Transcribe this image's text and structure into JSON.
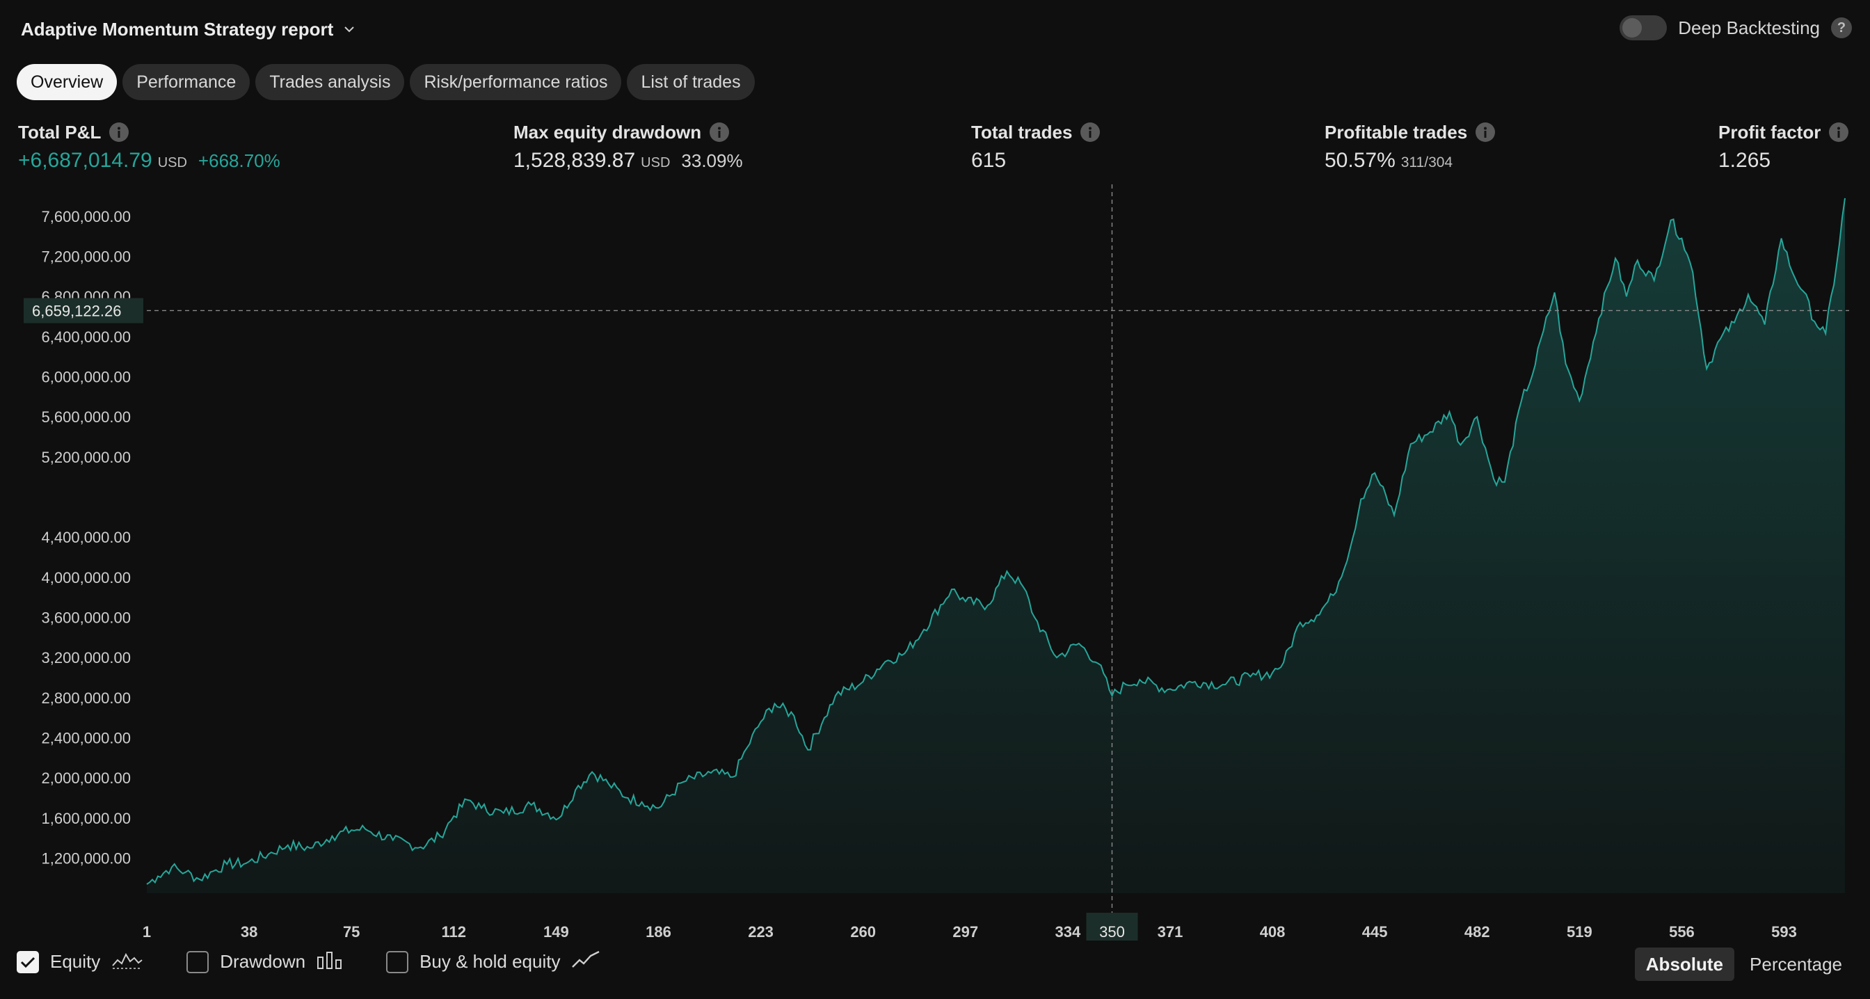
{
  "header": {
    "title": "Adaptive Momentum Strategy report"
  },
  "deep_backtesting": {
    "label": "Deep Backtesting",
    "enabled": false
  },
  "tabs": [
    {
      "label": "Overview",
      "active": true
    },
    {
      "label": "Performance",
      "active": false
    },
    {
      "label": "Trades analysis",
      "active": false
    },
    {
      "label": "Risk/performance ratios",
      "active": false
    },
    {
      "label": "List of trades",
      "active": false
    }
  ],
  "metrics": {
    "total_pnl": {
      "label": "Total P&L",
      "value": "+6,687,014.79",
      "currency": "USD",
      "percent": "+668.70%"
    },
    "max_drawdown": {
      "label": "Max equity drawdown",
      "value": "1,528,839.87",
      "currency": "USD",
      "percent": "33.09%"
    },
    "total_trades": {
      "label": "Total trades",
      "value": "615"
    },
    "profitable_trades": {
      "label": "Profitable trades",
      "value": "50.57%",
      "ratio": "311/304"
    },
    "profit_factor": {
      "label": "Profit factor",
      "value": "1.265"
    }
  },
  "legend": {
    "equity": {
      "label": "Equity",
      "checked": true
    },
    "drawdown": {
      "label": "Drawdown",
      "checked": false
    },
    "buy_hold": {
      "label": "Buy & hold equity",
      "checked": false
    }
  },
  "modes": [
    {
      "label": "Absolute",
      "active": true
    },
    {
      "label": "Percentage",
      "active": false
    }
  ],
  "colors": {
    "accent": "#26a69a",
    "background": "#0f0f0f"
  },
  "chart_data": {
    "type": "area",
    "x_ticks": [
      "1",
      "38",
      "75",
      "112",
      "149",
      "186",
      "223",
      "260",
      "297",
      "334",
      "371",
      "408",
      "445",
      "482",
      "519",
      "556",
      "593"
    ],
    "y_ticks": [
      "1,200,000.00",
      "1,600,000.00",
      "2,000,000.00",
      "2,400,000.00",
      "2,800,000.00",
      "3,200,000.00",
      "3,600,000.00",
      "4,000,000.00",
      "4,400,000.00",
      "5,200,000.00",
      "5,600,000.00",
      "6,000,000.00",
      "6,400,000.00",
      "6,800,000.00",
      "7,200,000.00",
      "7,600,000.00"
    ],
    "ylim": [
      850000,
      7800000
    ],
    "xlim": [
      1,
      615
    ],
    "crosshair": {
      "x_label": "350",
      "y_label": "6,659,122.26",
      "x": 350,
      "y": 6659122.26
    },
    "series": [
      {
        "name": "Equity",
        "x": [
          1,
          5,
          10,
          15,
          20,
          25,
          30,
          37,
          45,
          52,
          60,
          68,
          75,
          80,
          90,
          100,
          107,
          112,
          117,
          122,
          130,
          140,
          150,
          156,
          162,
          168,
          175,
          180,
          186,
          195,
          205,
          213,
          218,
          223,
          228,
          235,
          240,
          246,
          250,
          260,
          268,
          275,
          282,
          292,
          297,
          305,
          312,
          318,
          322,
          330,
          338,
          345,
          350,
          355,
          360,
          370,
          380,
          390,
          400,
          408,
          412,
          418,
          424,
          430,
          436,
          440,
          445,
          452,
          458,
          465,
          472,
          476,
          482,
          488,
          492,
          498,
          502,
          506,
          510,
          514,
          519,
          526,
          532,
          536,
          540,
          546,
          552,
          556,
          560,
          565,
          570,
          575,
          580,
          586,
          592,
          596,
          600,
          604,
          608,
          612,
          615
        ],
        "values": [
          940000,
          1020000,
          1110000,
          1060000,
          990000,
          1070000,
          1140000,
          1150000,
          1240000,
          1330000,
          1300000,
          1420000,
          1480000,
          1490000,
          1380000,
          1310000,
          1420000,
          1620000,
          1780000,
          1700000,
          1650000,
          1730000,
          1600000,
          1880000,
          2060000,
          1940000,
          1800000,
          1760000,
          1700000,
          1960000,
          2050000,
          2010000,
          2300000,
          2560000,
          2740000,
          2620000,
          2280000,
          2600000,
          2820000,
          2960000,
          3160000,
          3240000,
          3480000,
          3880000,
          3760000,
          3720000,
          4060000,
          3900000,
          3600000,
          3200000,
          3340000,
          3140000,
          2820000,
          2930000,
          2980000,
          2880000,
          2960000,
          2930000,
          3010000,
          3050000,
          3150000,
          3550000,
          3620000,
          3820000,
          4280000,
          4780000,
          5040000,
          4620000,
          5330000,
          5450000,
          5650000,
          5320000,
          5600000,
          4980000,
          4950000,
          5760000,
          6020000,
          6460000,
          6840000,
          6130000,
          5760000,
          6580000,
          7180000,
          6800000,
          7160000,
          6960000,
          7560000,
          7380000,
          7040000,
          6080000,
          6380000,
          6540000,
          6820000,
          6520000,
          7380000,
          7040000,
          6850000,
          6550000,
          6430000,
          7120000,
          7780000
        ]
      }
    ]
  }
}
